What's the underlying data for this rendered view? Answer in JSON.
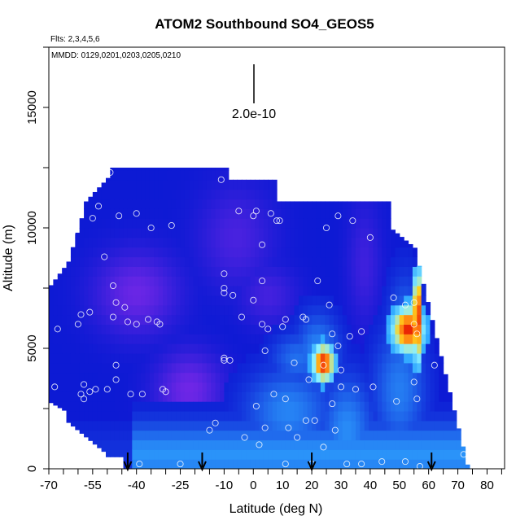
{
  "chart_data": {
    "type": "heatmap",
    "title": "ATOM2 Southbound SO4_GEOS5",
    "flights_note": "Flts: 2,3,4,5,6",
    "dates_note": "MMDD: 0129,0201,0203,0205,0210",
    "xlabel": "Latitude (deg N)",
    "ylabel": "Altitude (m)",
    "xlim": [
      -70,
      86
    ],
    "ylim": [
      0,
      17500
    ],
    "x_tick_labels": [
      "-70",
      "-55",
      "-40",
      "-25",
      "-10",
      "0",
      "10",
      "20",
      "30",
      "40",
      "50",
      "60",
      "70",
      "80"
    ],
    "y_ticks": [
      0,
      5000,
      10000,
      15000
    ],
    "scale_bar_label": "2.0e-10",
    "colors": {
      "low": "#0d1ad4",
      "purple": "#7a28e8",
      "light_blue": "#2fa8ff",
      "cyan": "#8af0ff",
      "yellow": "#ffd21e",
      "orange": "#ff7a10",
      "red": "#e00000"
    },
    "arrow_latitudes": [
      -43,
      -17.5,
      20,
      61
    ],
    "high_concentration_features": [
      {
        "lat_range": [
          21,
          27
        ],
        "alt_range": [
          3800,
          5100
        ],
        "level": "high"
      },
      {
        "lat_range": [
          46,
          58
        ],
        "alt_range": [
          5000,
          6900
        ],
        "level": "high"
      },
      {
        "lat_range": [
          54,
          58
        ],
        "alt_range": [
          5000,
          8200
        ],
        "level": "very high"
      }
    ],
    "sample_points": [
      [
        -68,
        3400
      ],
      [
        -67,
        5800
      ],
      [
        -62,
        9800
      ],
      [
        -60,
        6000
      ],
      [
        -59,
        6400
      ],
      [
        -59,
        3100
      ],
      [
        -58,
        2900
      ],
      [
        -58,
        3500
      ],
      [
        -57,
        12000
      ],
      [
        -57,
        11600
      ],
      [
        -56,
        6500
      ],
      [
        -56,
        3200
      ],
      [
        -55,
        10400
      ],
      [
        -54,
        3300
      ],
      [
        -53,
        10900
      ],
      [
        -51,
        8800
      ],
      [
        -50,
        3300
      ],
      [
        -49,
        12300
      ],
      [
        -48,
        7600
      ],
      [
        -48,
        6300
      ],
      [
        -47,
        6900
      ],
      [
        -47,
        4300
      ],
      [
        -47,
        3700
      ],
      [
        -46,
        10500
      ],
      [
        -44,
        6700
      ],
      [
        -43,
        6100
      ],
      [
        -42,
        3100
      ],
      [
        -40,
        10600
      ],
      [
        -40,
        6000
      ],
      [
        -39,
        200
      ],
      [
        -38,
        3100
      ],
      [
        -36,
        6200
      ],
      [
        -35,
        10000
      ],
      [
        -33,
        6100
      ],
      [
        -32,
        6000
      ],
      [
        -31,
        3300
      ],
      [
        -30,
        3200
      ],
      [
        -28,
        10100
      ],
      [
        -25,
        200
      ],
      [
        -15,
        1600
      ],
      [
        -13,
        1900
      ],
      [
        -11,
        12000
      ],
      [
        -10,
        8100
      ],
      [
        -10,
        7500
      ],
      [
        -10,
        7300
      ],
      [
        -10,
        4600
      ],
      [
        -10,
        4500
      ],
      [
        -8,
        4500
      ],
      [
        -7,
        7200
      ],
      [
        -5,
        10700
      ],
      [
        -4,
        6300
      ],
      [
        -3,
        1300
      ],
      [
        0,
        10500
      ],
      [
        0,
        7000
      ],
      [
        1,
        10700
      ],
      [
        1,
        2600
      ],
      [
        2,
        1000
      ],
      [
        3,
        9300
      ],
      [
        3,
        7800
      ],
      [
        3,
        6000
      ],
      [
        4,
        4900
      ],
      [
        4,
        1700
      ],
      [
        5,
        5800
      ],
      [
        6,
        10600
      ],
      [
        7,
        3100
      ],
      [
        8,
        10300
      ],
      [
        9,
        10300
      ],
      [
        10,
        5900
      ],
      [
        11,
        200
      ],
      [
        11,
        6200
      ],
      [
        11,
        2900
      ],
      [
        12,
        1700
      ],
      [
        14,
        4400
      ],
      [
        15,
        1300
      ],
      [
        17,
        6300
      ],
      [
        18,
        6200
      ],
      [
        18,
        2000
      ],
      [
        19,
        3700
      ],
      [
        20,
        200
      ],
      [
        21,
        2000
      ],
      [
        22,
        7800
      ],
      [
        24,
        900
      ],
      [
        24,
        4300
      ],
      [
        25,
        10000
      ],
      [
        26,
        6800
      ],
      [
        27,
        5600
      ],
      [
        27,
        2700
      ],
      [
        28,
        1600
      ],
      [
        29,
        10500
      ],
      [
        29,
        5100
      ],
      [
        30,
        3400
      ],
      [
        30,
        4100
      ],
      [
        32,
        200
      ],
      [
        33,
        5500
      ],
      [
        34,
        10300
      ],
      [
        35,
        3300
      ],
      [
        37,
        200
      ],
      [
        37,
        5700
      ],
      [
        40,
        9600
      ],
      [
        41,
        3400
      ],
      [
        44,
        300
      ],
      [
        48,
        7100
      ],
      [
        49,
        2800
      ],
      [
        52,
        300
      ],
      [
        52,
        6800
      ],
      [
        53,
        10200
      ],
      [
        55,
        6900
      ],
      [
        55,
        6000
      ],
      [
        55,
        3600
      ],
      [
        56,
        5600
      ],
      [
        56,
        2900
      ],
      [
        57,
        100
      ],
      [
        62,
        4300
      ],
      [
        72,
        600
      ]
    ]
  }
}
